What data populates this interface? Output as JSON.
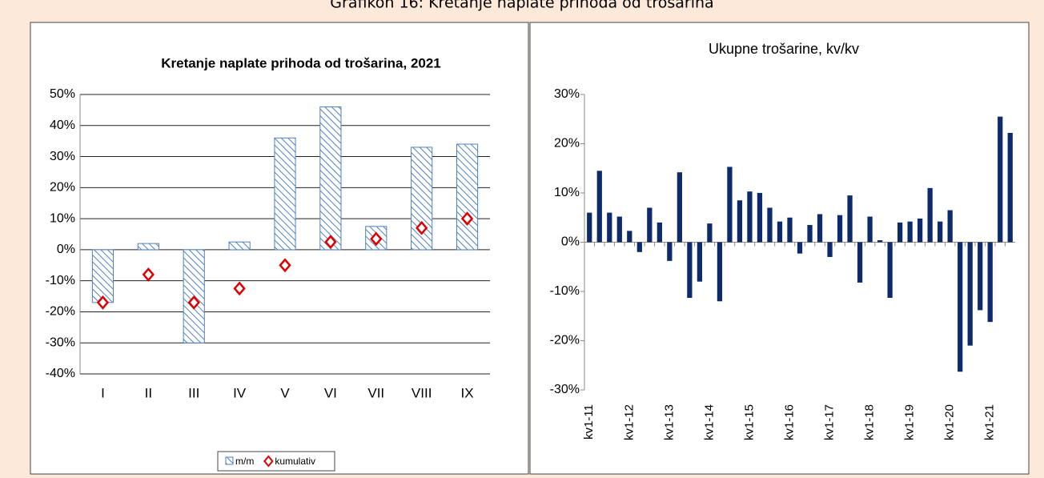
{
  "caption": "Grafikon 16: Kretanje naplate prihoda od trošarina",
  "chart_data": [
    {
      "type": "bar",
      "title": "Kretanje naplate prihoda od trošarina, 2021",
      "categories": [
        "I",
        "II",
        "III",
        "IV",
        "V",
        "VI",
        "VII",
        "VIII",
        "IX"
      ],
      "series": [
        {
          "name": "m/m",
          "type": "bar",
          "color": "#4f81bd",
          "values": [
            -17,
            2,
            -30,
            2.5,
            36,
            46,
            7.5,
            33,
            34
          ]
        },
        {
          "name": "kumulativ",
          "type": "scatter",
          "color": "#e00000",
          "values": [
            -17,
            -8,
            -17,
            -12.5,
            -5,
            2.5,
            3.5,
            7,
            10
          ]
        }
      ],
      "ylim": [
        -40,
        50
      ],
      "yticks": [
        {
          "value": -40,
          "label": "-40%"
        },
        {
          "value": -30,
          "label": "-30%"
        },
        {
          "value": -20,
          "label": "-20%"
        },
        {
          "value": -10,
          "label": "-10%"
        },
        {
          "value": 0,
          "label": "0%"
        },
        {
          "value": 10,
          "label": "10%"
        },
        {
          "value": 20,
          "label": "20%"
        },
        {
          "value": 30,
          "label": "30%"
        },
        {
          "value": 40,
          "label": "40%"
        },
        {
          "value": 50,
          "label": "50%"
        }
      ],
      "grid": true,
      "legend": "bottom"
    },
    {
      "type": "bar",
      "title": "Ukupne trošarine, kv/kv",
      "categories": [
        "kv1-11",
        null,
        null,
        null,
        "kv1-12",
        null,
        null,
        null,
        "kv1-13",
        null,
        null,
        null,
        "kv1-14",
        null,
        null,
        null,
        "kv1-15",
        null,
        null,
        null,
        "kv1-16",
        null,
        null,
        null,
        "kv1-17",
        null,
        null,
        null,
        "kv1-18",
        null,
        null,
        null,
        "kv1-19",
        null,
        null,
        null,
        "kv1-20",
        null,
        null,
        null,
        "kv1-21",
        null,
        null
      ],
      "series": [
        {
          "type": "bar",
          "color": "#0d2a6b",
          "values": [
            6,
            14.5,
            6,
            5.2,
            2.3,
            -2,
            7,
            4,
            -3.8,
            14.2,
            -11.3,
            -8,
            3.8,
            -12,
            15.3,
            8.5,
            10.3,
            10,
            7,
            4.2,
            5,
            -2.3,
            3.5,
            5.7,
            -3,
            5.5,
            9.5,
            -8.2,
            5.2,
            0.4,
            -11.3,
            4,
            4.2,
            4.8,
            11,
            4.2,
            6.5,
            -26.3,
            -21,
            -13.8,
            -16.2,
            25.5,
            22.2
          ]
        }
      ],
      "ylim": [
        -30,
        30
      ],
      "yticks": [
        {
          "value": -30,
          "label": "-30%"
        },
        {
          "value": -20,
          "label": "-20%"
        },
        {
          "value": -10,
          "label": "-10%"
        },
        {
          "value": 0,
          "label": "0%"
        },
        {
          "value": 10,
          "label": "10%"
        },
        {
          "value": 20,
          "label": "20%"
        },
        {
          "value": 30,
          "label": "30%"
        }
      ],
      "grid": false
    }
  ]
}
